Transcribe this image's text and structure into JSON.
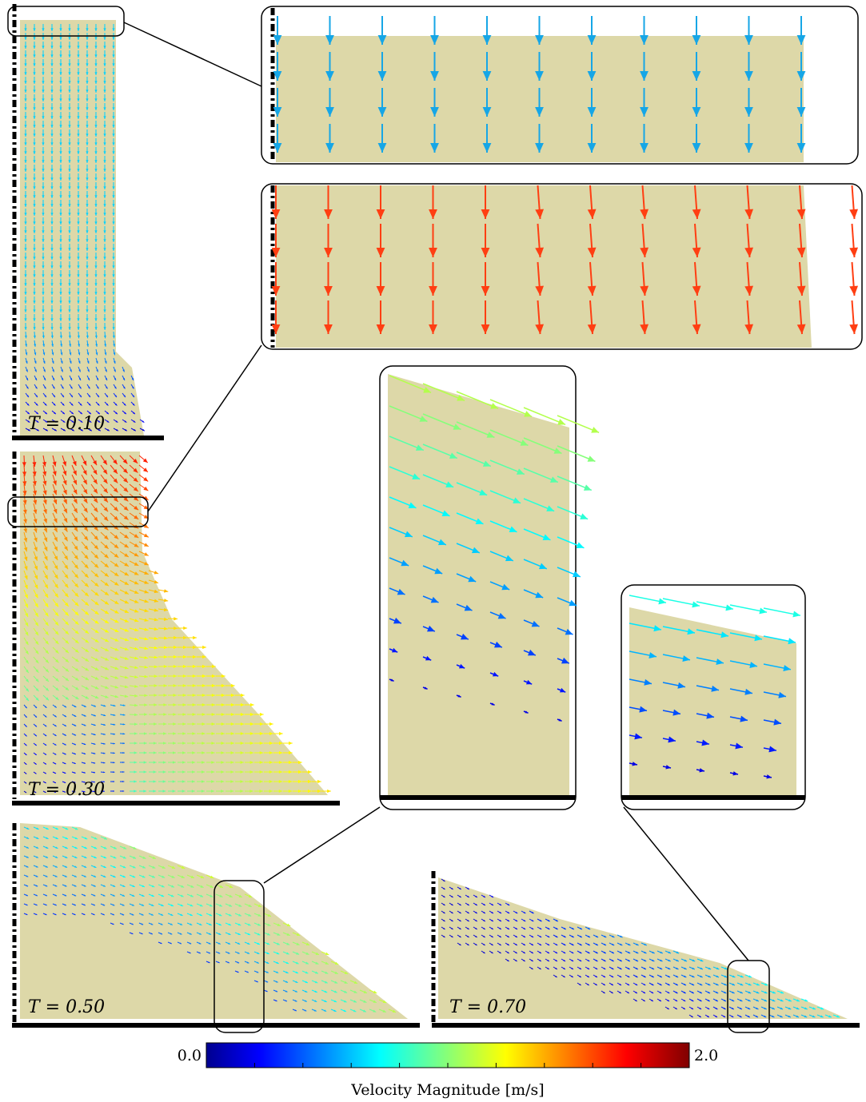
{
  "panels": [
    {
      "label": "T = 0.10"
    },
    {
      "label": "T = 0.30"
    },
    {
      "label": "T = 0.50"
    },
    {
      "label": "T = 0.70"
    }
  ],
  "colorbar": {
    "label": "Velocity Magnitude [m/s]",
    "lim": [
      0,
      2
    ],
    "ticks": [
      {
        "value": 0,
        "label": "0.0"
      },
      {
        "value": 2,
        "label": "2.0"
      }
    ],
    "minor_ticks": [
      0.2,
      0.4,
      0.6,
      0.8,
      1,
      1.2,
      1.4,
      1.6,
      1.8
    ]
  }
}
